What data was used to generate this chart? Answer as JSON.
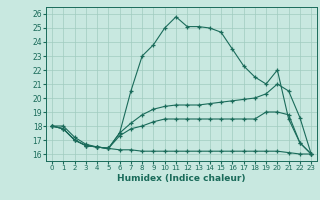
{
  "xlabel": "Humidex (Indice chaleur)",
  "ylabel": "",
  "bg_color": "#c8e8e0",
  "grid_color": "#a0ccbf",
  "line_color": "#1a6b5a",
  "xlim": [
    -0.5,
    23.5
  ],
  "ylim": [
    15.5,
    26.5
  ],
  "yticks": [
    16,
    17,
    18,
    19,
    20,
    21,
    22,
    23,
    24,
    25,
    26
  ],
  "xticks": [
    0,
    1,
    2,
    3,
    4,
    5,
    6,
    7,
    8,
    9,
    10,
    11,
    12,
    13,
    14,
    15,
    16,
    17,
    18,
    19,
    20,
    21,
    22,
    23
  ],
  "line1_x": [
    0,
    1,
    2,
    3,
    4,
    5,
    6,
    7,
    8,
    9,
    10,
    11,
    12,
    13,
    14,
    15,
    16,
    17,
    18,
    19,
    20,
    21,
    22,
    23
  ],
  "line1_y": [
    18.0,
    17.8,
    17.0,
    16.6,
    16.5,
    16.4,
    17.5,
    20.5,
    23.0,
    23.8,
    25.0,
    25.8,
    25.1,
    25.1,
    25.0,
    24.7,
    23.5,
    22.3,
    21.5,
    21.0,
    22.0,
    18.5,
    16.8,
    16.0
  ],
  "line2_x": [
    0,
    1,
    2,
    3,
    4,
    5,
    6,
    7,
    8,
    9,
    10,
    11,
    12,
    13,
    14,
    15,
    16,
    17,
    18,
    19,
    20,
    21,
    22,
    23
  ],
  "line2_y": [
    18.0,
    17.8,
    17.0,
    16.6,
    16.5,
    16.4,
    17.5,
    18.2,
    18.8,
    19.2,
    19.4,
    19.5,
    19.5,
    19.5,
    19.6,
    19.7,
    19.8,
    19.9,
    20.0,
    20.3,
    21.0,
    20.5,
    18.6,
    16.0
  ],
  "line3_x": [
    0,
    1,
    2,
    3,
    4,
    5,
    6,
    7,
    8,
    9,
    10,
    11,
    12,
    13,
    14,
    15,
    16,
    17,
    18,
    19,
    20,
    21,
    22,
    23
  ],
  "line3_y": [
    18.0,
    17.8,
    17.0,
    16.6,
    16.5,
    16.4,
    17.3,
    17.8,
    18.0,
    18.3,
    18.5,
    18.5,
    18.5,
    18.5,
    18.5,
    18.5,
    18.5,
    18.5,
    18.5,
    19.0,
    19.0,
    18.8,
    16.8,
    16.0
  ],
  "line4_x": [
    0,
    1,
    2,
    3,
    4,
    5,
    6,
    7,
    8,
    9,
    10,
    11,
    12,
    13,
    14,
    15,
    16,
    17,
    18,
    19,
    20,
    21,
    22,
    23
  ],
  "line4_y": [
    18.0,
    18.0,
    17.2,
    16.7,
    16.5,
    16.4,
    16.3,
    16.3,
    16.2,
    16.2,
    16.2,
    16.2,
    16.2,
    16.2,
    16.2,
    16.2,
    16.2,
    16.2,
    16.2,
    16.2,
    16.2,
    16.1,
    16.0,
    16.0
  ]
}
